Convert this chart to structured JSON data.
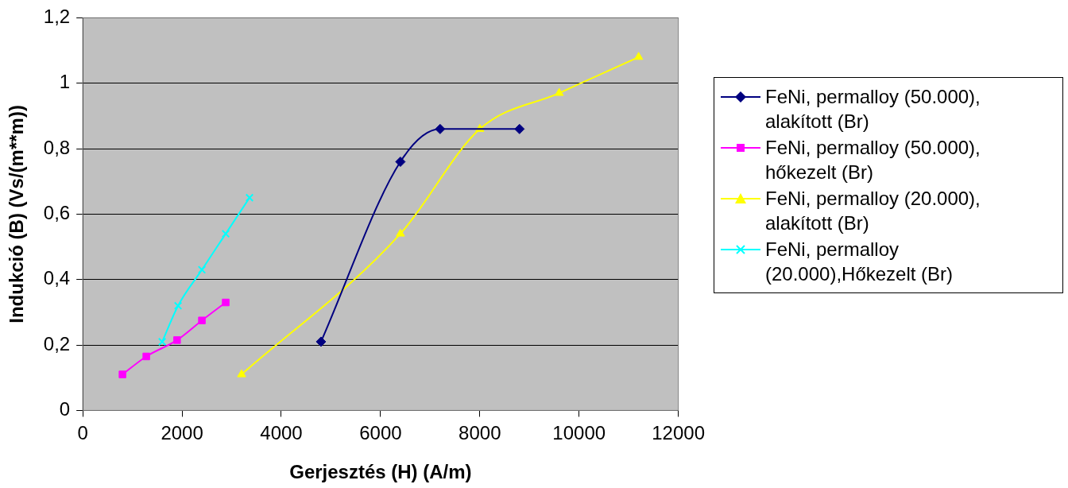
{
  "chart_data": {
    "type": "line",
    "xlabel": "Gerjesztés (H) (A/m)",
    "ylabel": "Indukció (B) (Vs/(m**m))",
    "xlim": [
      0,
      12000
    ],
    "xticks": [
      0,
      2000,
      4000,
      6000,
      8000,
      10000,
      12000
    ],
    "ylim": [
      0,
      1.2
    ],
    "yticks": [
      0,
      {
        "value": 0.2,
        "label": "0,2"
      },
      {
        "value": 0.4,
        "label": "0,4"
      },
      {
        "value": 0.6,
        "label": "0,6"
      },
      {
        "value": 0.8,
        "label": "0,8"
      },
      1,
      {
        "value": 1.2,
        "label": "1,2"
      }
    ],
    "grid": "y",
    "legend": "right",
    "line_style": "solid",
    "series": [
      {
        "name": "FeNi, permalloy (50.000), alakított (Br)",
        "color": "#000080",
        "marker": "diamond",
        "x": [
          4800,
          6400,
          7200,
          8800
        ],
        "values": [
          0.21,
          0.76,
          0.86,
          0.86
        ]
      },
      {
        "name": "FeNi, permalloy (50.000), hőkezelt (Br)",
        "color": "#ff00ff",
        "marker": "square",
        "x": [
          800,
          1280,
          1900,
          2400,
          2880
        ],
        "values": [
          0.11,
          0.165,
          0.215,
          0.275,
          0.33
        ]
      },
      {
        "name": "FeNi, permalloy (20.000), alakított (Br)",
        "color": "#ffff00",
        "marker": "triangle",
        "x": [
          3200,
          6400,
          8000,
          9600,
          11200
        ],
        "values": [
          0.11,
          0.54,
          0.86,
          0.97,
          1.08
        ]
      },
      {
        "name": "FeNi, permalloy (20.000),Hőkezelt (Br)",
        "color": "#00ffff",
        "marker": "cross",
        "x": [
          1600,
          1920,
          2400,
          2880,
          3360
        ],
        "values": [
          0.21,
          0.32,
          0.43,
          0.54,
          0.65
        ]
      }
    ]
  }
}
